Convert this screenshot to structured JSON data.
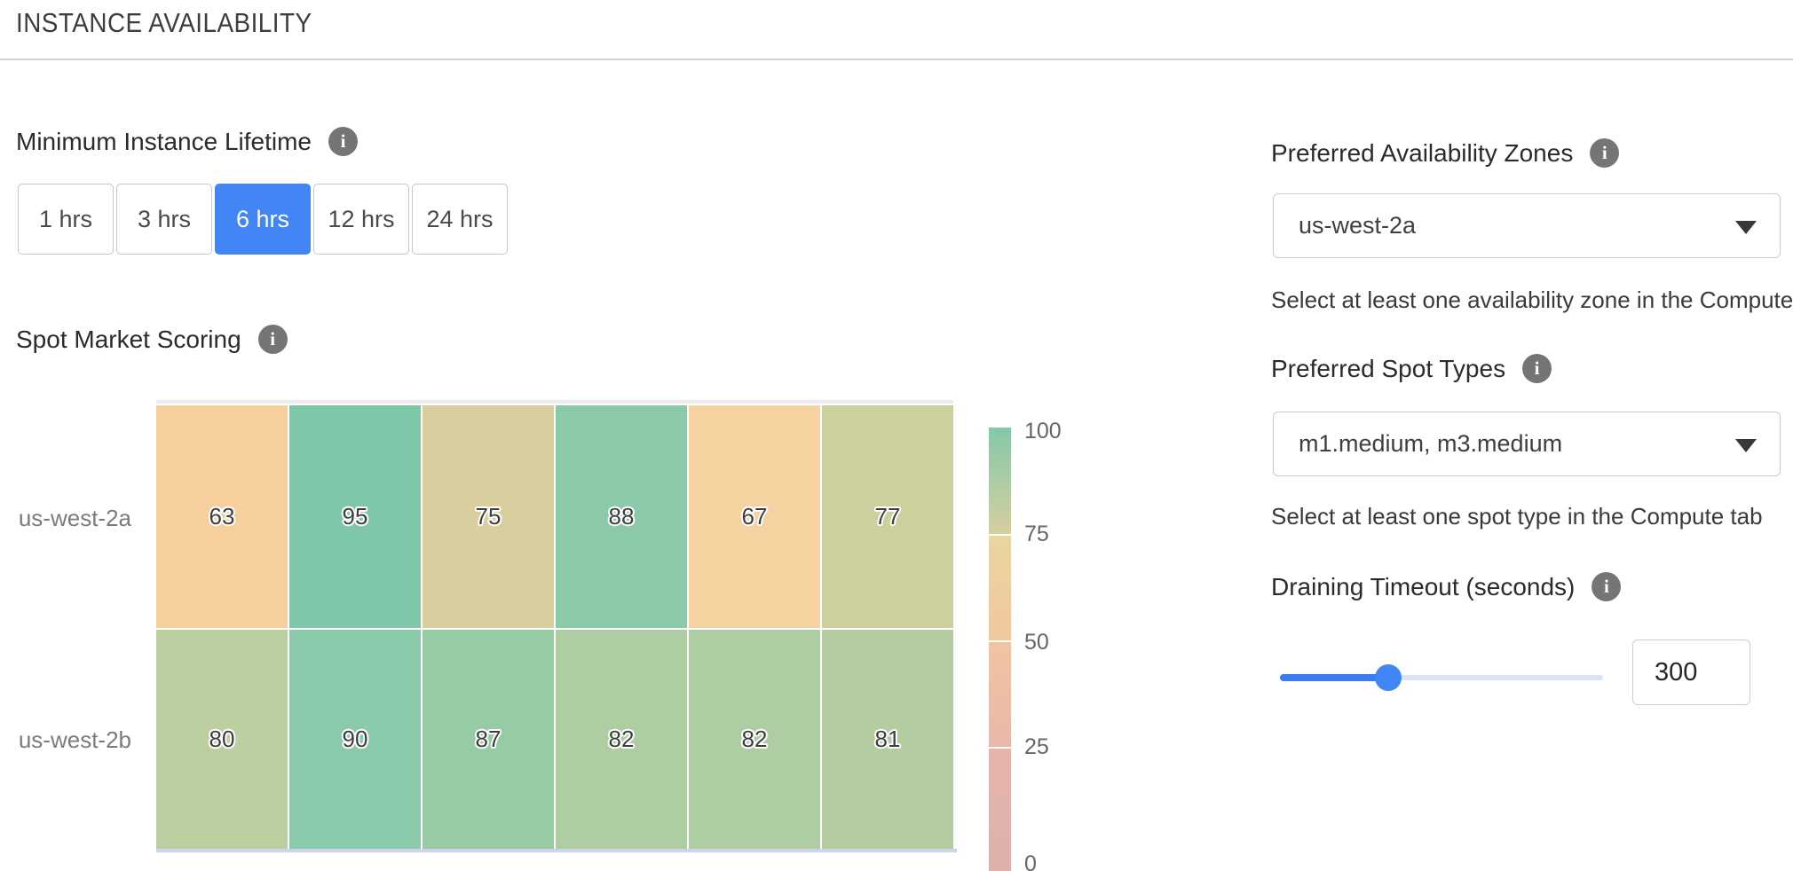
{
  "page": {
    "title": "INSTANCE AVAILABILITY"
  },
  "icons": {
    "info": "i"
  },
  "colors": {
    "accent_blue": "#4285f4",
    "slider_fill": "#3b7cf0",
    "slider_track": "#d9e4f9",
    "info_icon_bg": "#757575",
    "heatmap_baseline": "#cdd5ec"
  },
  "minimum_instance_lifetime": {
    "label": "Minimum Instance Lifetime",
    "selected_index": 2,
    "selected_value": "6 hrs",
    "options": [
      {
        "label": "1 hrs"
      },
      {
        "label": "3 hrs"
      },
      {
        "label": "6 hrs"
      },
      {
        "label": "12 hrs"
      },
      {
        "label": "24 hrs"
      }
    ]
  },
  "spot_market_scoring": {
    "label": "Spot Market Scoring"
  },
  "chart_data": {
    "type": "heatmap",
    "title": "Spot Market Scoring",
    "rows": [
      "us-west-2a",
      "us-west-2b"
    ],
    "num_columns": 6,
    "values": [
      [
        63,
        95,
        75,
        88,
        67,
        77
      ],
      [
        80,
        90,
        87,
        82,
        82,
        81
      ]
    ],
    "cell_colors": [
      [
        "#f6cf9d",
        "#7fc7a9",
        "#d9cf9e",
        "#8bc9a9",
        "#f6d2a1",
        "#cbd09d"
      ],
      [
        "#bccfa0",
        "#8bc9ab",
        "#97cba6",
        "#aecda3",
        "#aecda3",
        "#b3cda1"
      ]
    ],
    "colorbar": {
      "ticks": [
        "100",
        "75",
        "50",
        "25",
        "0"
      ],
      "range": [
        0,
        100
      ],
      "segments": [
        [
          "#84c8aa",
          "#d6cf9f"
        ],
        [
          "#e9d5a2",
          "#f3c79e"
        ],
        [
          "#f0c4a3",
          "#e9b8a8"
        ],
        [
          "#e5b4ab",
          "#dfb0ad"
        ]
      ]
    },
    "legend_position": "right",
    "grid": false
  },
  "preferred_availability_zones": {
    "label": "Preferred Availability Zones",
    "value": "us-west-2a",
    "helper": "Select at least one availability zone in the Compute tab"
  },
  "preferred_spot_types": {
    "label": "Preferred Spot Types",
    "value": "m1.medium, m3.medium",
    "helper": "Select at least one spot type in the Compute tab"
  },
  "draining_timeout": {
    "label": "Draining Timeout (seconds)",
    "value": "300",
    "slider_percent": 33.5
  }
}
